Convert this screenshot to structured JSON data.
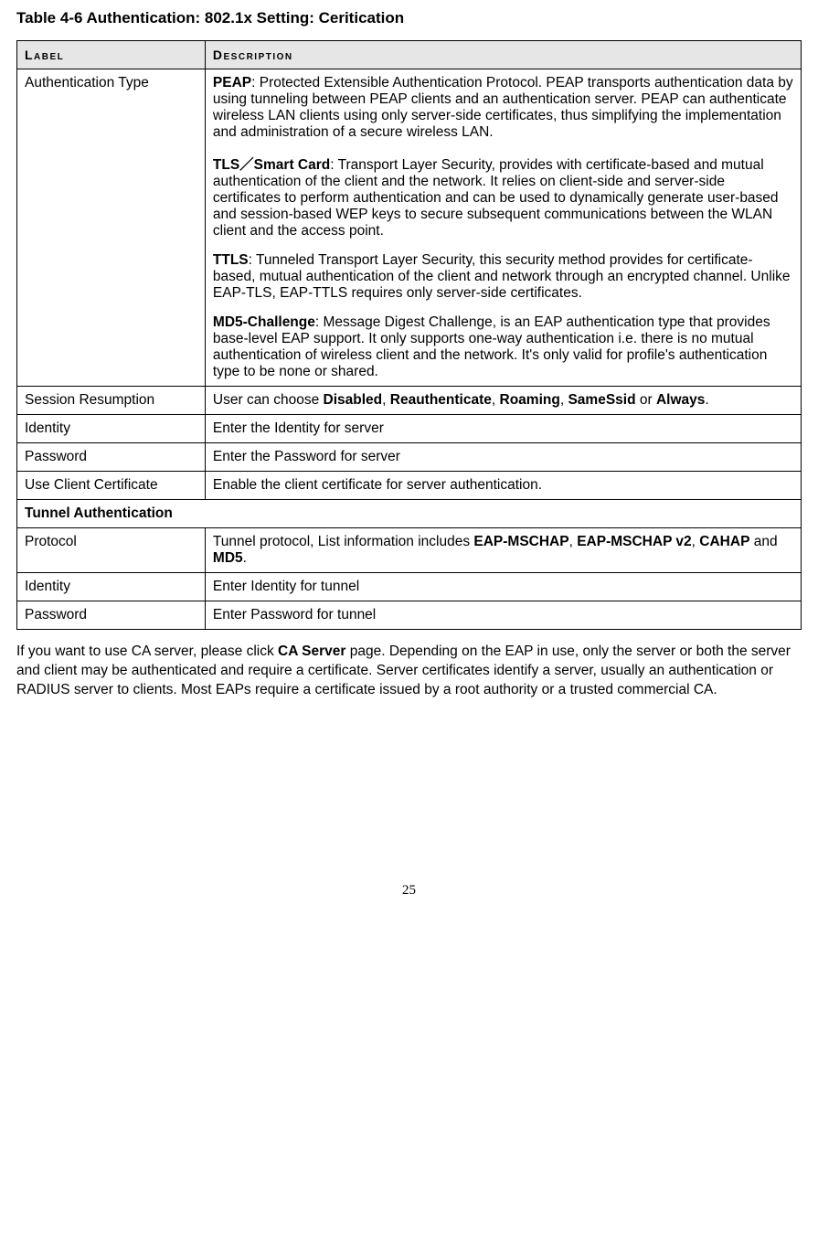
{
  "title": "Table 4-6 Authentication: 802.1x Setting: Ceritication",
  "header": {
    "label": "Label",
    "description": "Description"
  },
  "rows": {
    "auth_type": {
      "label": "Authentication Type"
    },
    "session": {
      "label": "Session Resumption",
      "pre": "User can choose ",
      "opt1": "Disabled",
      "sep1": ", ",
      "opt2": "Reauthenticate",
      "sep2": ", ",
      "opt3": "Roaming",
      "sep3": ", ",
      "opt4": "SameSsid",
      "sep4": " or ",
      "opt5": "Always",
      "post": "."
    },
    "identity": {
      "label": "Identity",
      "desc": "Enter the Identity for server"
    },
    "password": {
      "label": "Password",
      "desc": "Enter the Password for server"
    },
    "use_client_cert": {
      "label": "Use Client Certificate",
      "desc": "Enable the client certificate for server authentication."
    },
    "tunnel_section": {
      "label": "Tunnel Authentication"
    },
    "protocol": {
      "label": "Protocol",
      "pre": "Tunnel protocol, List information includes ",
      "opt1": "EAP-MSCHAP",
      "sep1": ", ",
      "opt2": "EAP-MSCHAP v2",
      "sep2": ", ",
      "opt3": "CAHAP",
      "sep3": " and ",
      "opt4": "MD5",
      "post": "."
    },
    "t_identity": {
      "label": "Identity",
      "desc": "Enter Identity for tunnel"
    },
    "t_password": {
      "label": "Password",
      "desc": "Enter Password for tunnel"
    }
  },
  "auth_desc": {
    "peap_b": "PEAP",
    "peap_t": ": Protected Extensible Authentication Protocol. PEAP transports authentication data by using tunneling between PEAP clients and an authentication server. PEAP can authenticate wireless LAN clients using only server-side certificates, thus simplifying the implementation and administration of a secure wireless LAN.",
    "tls_b": "TLS／Smart Card",
    "tls_t": ": Transport Layer Security, provides with certificate-based and mutual authentication of the client and the network. It relies on client-side and server-side certificates to perform authentication and can be used to dynamically generate user-based and session-based WEP keys to secure subsequent communications between the WLAN client and the access point.",
    "ttls_b": "TTLS",
    "ttls_t": ": Tunneled Transport Layer Security, this security method provides for certificate-based, mutual authentication of the client and network through an encrypted channel. Unlike EAP-TLS, EAP-TTLS requires only server-side certificates.",
    "md5_b": "MD5-Challenge",
    "md5_t": ": Message Digest Challenge, is an EAP authentication type that provides base-level EAP support. It only supports one-way authentication i.e. there is no mutual authentication of wireless client and the network. It's only valid for profile's authentication type to be none or shared."
  },
  "after": {
    "pre": "If you want to use CA server, please click ",
    "bold": "CA Server",
    "post": " page. Depending on the EAP in use, only the server or both the server and client may be authenticated and require a certificate. Server certificates identify a server, usually an authentication or RADIUS server to clients. Most EAPs require a certificate issued by a root authority or a trusted commercial CA."
  },
  "page_number": "25"
}
